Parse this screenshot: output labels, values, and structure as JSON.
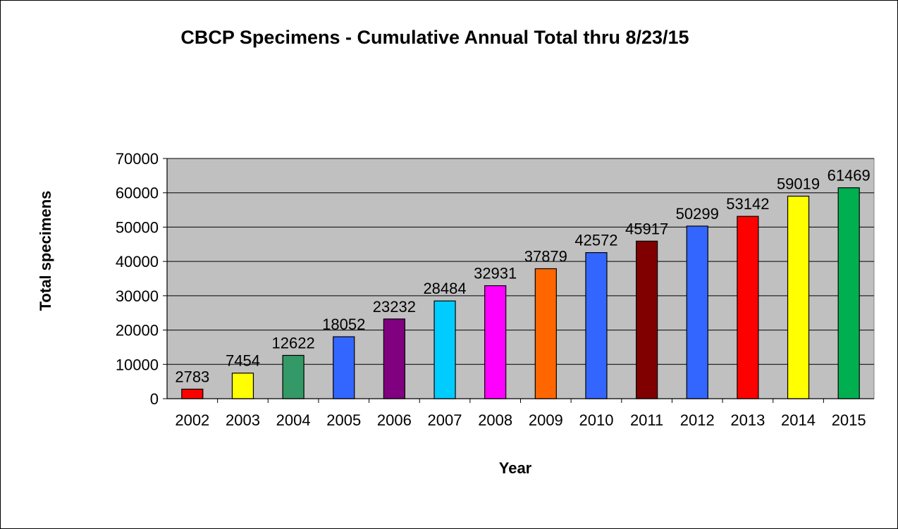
{
  "chart_data": {
    "type": "bar",
    "title": "CBCP Specimens - Cumulative Annual Total thru 8/23/15",
    "xlabel": "Year",
    "ylabel": "Total specimens",
    "ylim": [
      0,
      70000
    ],
    "ytick_step": 10000,
    "y_ticks": [
      "0",
      "10000",
      "20000",
      "30000",
      "40000",
      "50000",
      "60000",
      "70000"
    ],
    "grid": true,
    "legend": "none",
    "plot_background": "#c0c0c0",
    "categories": [
      "2002",
      "2003",
      "2004",
      "2005",
      "2006",
      "2007",
      "2008",
      "2009",
      "2010",
      "2011",
      "2012",
      "2013",
      "2014",
      "2015"
    ],
    "values": [
      2783,
      7454,
      12622,
      18052,
      23232,
      28484,
      32931,
      37879,
      42572,
      45917,
      50299,
      53142,
      59019,
      61469
    ],
    "colors": [
      "#ff0000",
      "#ffff00",
      "#339966",
      "#3366ff",
      "#800080",
      "#00ccff",
      "#ff00ff",
      "#ff6600",
      "#3366ff",
      "#800000",
      "#3366ff",
      "#ff0000",
      "#ffff00",
      "#00b050"
    ]
  }
}
